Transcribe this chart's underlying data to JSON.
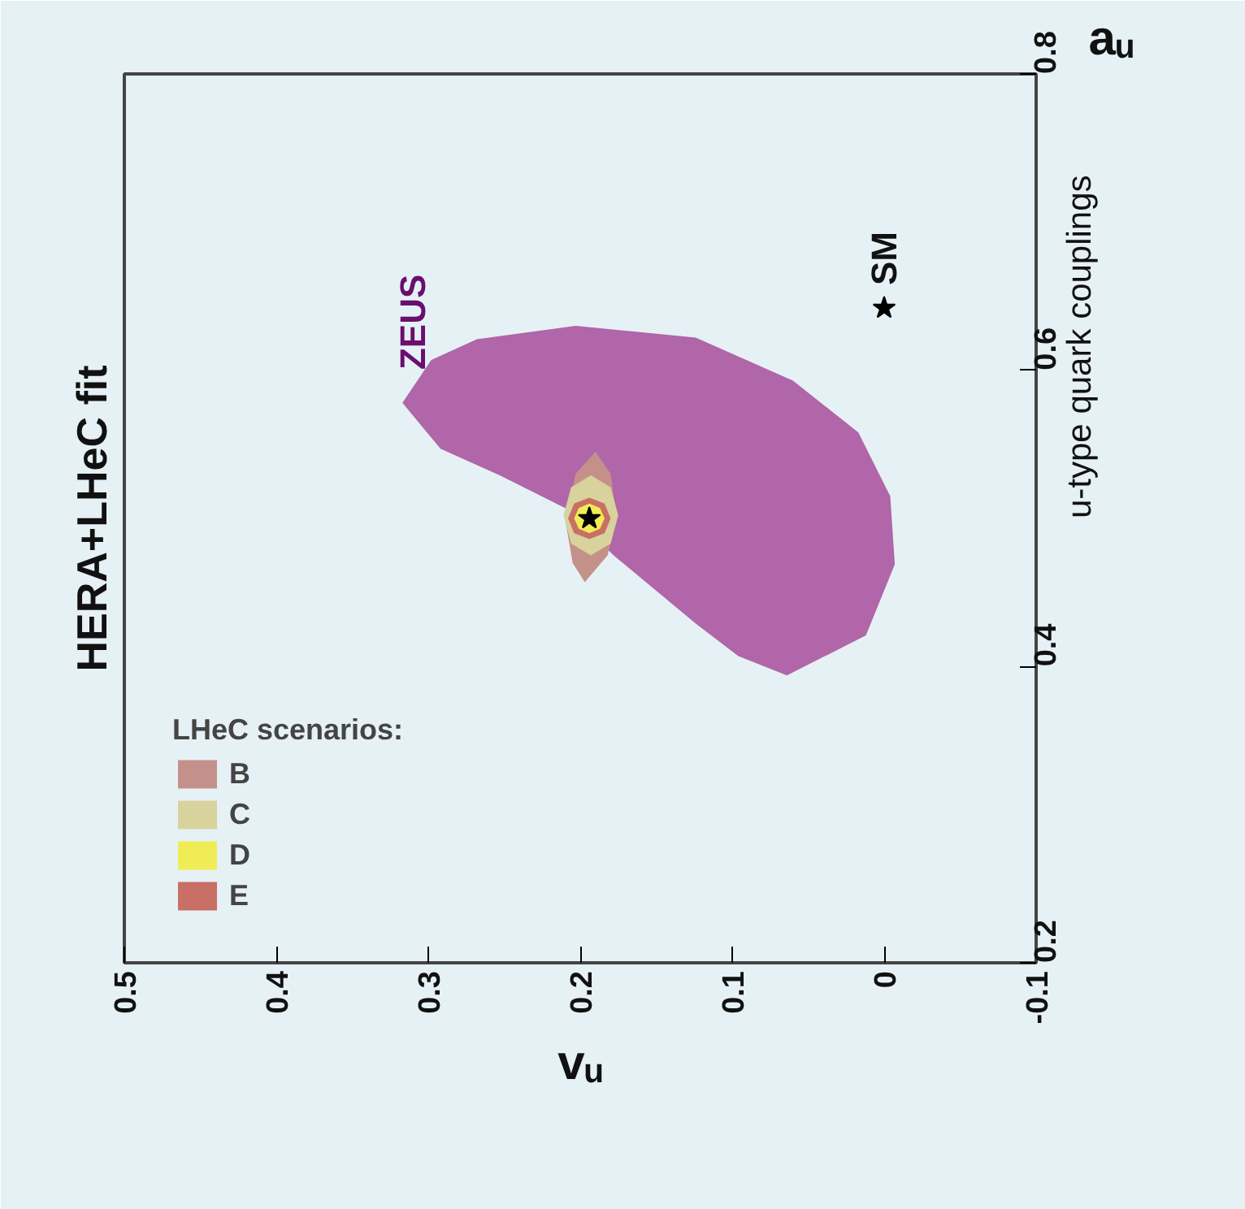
{
  "chart_data": {
    "type": "area",
    "title": "HERA+LHeC fit",
    "xlabel": "vᵤ",
    "ylabel": "u-type quark couplings",
    "legend_title": "LHeC scenarios:",
    "legend": "bottom left",
    "grid": false,
    "annotations": [
      "aᵤ",
      {
        "text": "ZEUS",
        "x": 0.31,
        "y": 0.585
      },
      {
        "text": "SM",
        "x": 0.0,
        "y": 0.642
      }
    ],
    "xlim": [
      0.5,
      -0.1
    ],
    "xticks": [
      0.5,
      0.4,
      0.3,
      0.2,
      0.1,
      0,
      -0.1
    ],
    "ylim": [
      0.2,
      0.8
    ],
    "yticks": [
      0.2,
      0.4,
      0.6,
      0.8
    ],
    "series": [
      {
        "color": "#b066a9",
        "x": [
          0.317,
          0.298,
          0.268,
          0.203,
          0.124,
          0.06,
          0.017,
          -0.004,
          -0.007,
          0.012,
          0.064,
          0.096,
          0.124,
          0.178,
          0.21,
          0.253,
          0.292
        ],
        "values": [
          0.578,
          0.607,
          0.621,
          0.63,
          0.622,
          0.593,
          0.558,
          0.515,
          0.469,
          0.421,
          0.394,
          0.407,
          0.429,
          0.475,
          0.507,
          0.529,
          0.547
        ]
      },
      {
        "name": "B",
        "color": "#c4918a",
        "x": [
          0.19,
          0.18,
          0.176,
          0.182,
          0.197,
          0.205,
          0.21,
          0.203
        ],
        "values": [
          0.545,
          0.53,
          0.5,
          0.475,
          0.457,
          0.47,
          0.5,
          0.53
        ]
      },
      {
        "name": "C",
        "color": "#d8d29c",
        "x": [
          0.193,
          0.206,
          0.211,
          0.206,
          0.193,
          0.18,
          0.175,
          0.18
        ],
        "values": [
          0.529,
          0.521,
          0.502,
          0.483,
          0.475,
          0.483,
          0.502,
          0.521
        ]
      },
      {
        "name": "D",
        "color": "#f0ec55",
        "x": [
          0.194,
          0.201,
          0.204,
          0.201,
          0.194,
          0.187,
          0.184,
          0.187
        ],
        "values": [
          0.51,
          0.507,
          0.5,
          0.493,
          0.49,
          0.493,
          0.5,
          0.507
        ]
      },
      {
        "name": "E",
        "color": "#c86f66",
        "x": [
          0.194,
          0.204,
          0.208,
          0.204,
          0.194,
          0.184,
          0.18,
          0.184
        ],
        "values": [
          0.514,
          0.51,
          0.5,
          0.49,
          0.486,
          0.49,
          0.5,
          0.51
        ]
      },
      {
        "type": "scatter",
        "marker": "star",
        "color": "#000000",
        "x": [
          0.194,
          0.0
        ],
        "values": [
          0.5,
          0.642
        ]
      }
    ]
  }
}
